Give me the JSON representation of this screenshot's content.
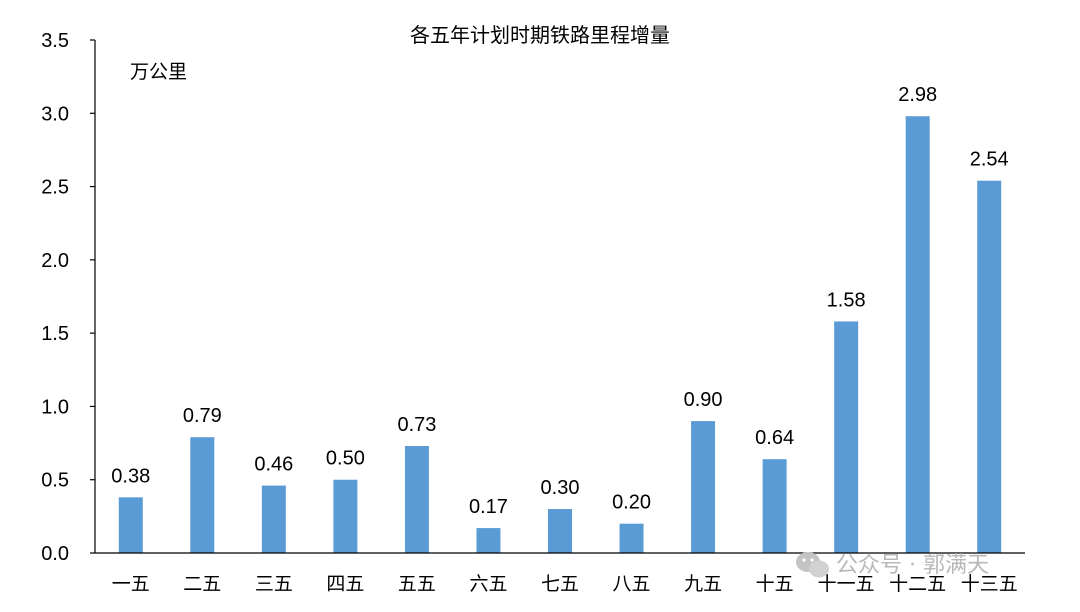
{
  "chart_data": {
    "type": "bar",
    "title": "各五年计划时期铁路里程增量",
    "unit_label": "万公里",
    "categories": [
      "一五",
      "二五",
      "三五",
      "四五",
      "五五",
      "六五",
      "七五",
      "八五",
      "九五",
      "十五",
      "十一五",
      "十二五",
      "十三五"
    ],
    "values": [
      0.38,
      0.79,
      0.46,
      0.5,
      0.73,
      0.17,
      0.3,
      0.2,
      0.9,
      0.64,
      1.58,
      2.98,
      2.54
    ],
    "data_labels": [
      "0.38",
      "0.79",
      "0.46",
      "0.50",
      "0.73",
      "0.17",
      "0.30",
      "0.20",
      "0.90",
      "0.64",
      "1.58",
      "2.98",
      "2.54"
    ],
    "y_ticks": [
      "0.0",
      "0.5",
      "1.0",
      "1.5",
      "2.0",
      "2.5",
      "3.0",
      "3.5"
    ],
    "ylim": [
      0,
      3.5
    ],
    "grid": false,
    "bar_color": "#5b9bd5",
    "xlabel": "",
    "ylabel": ""
  },
  "watermark": {
    "text": "公众号 · 郭满天",
    "icon": "wechat-icon"
  }
}
